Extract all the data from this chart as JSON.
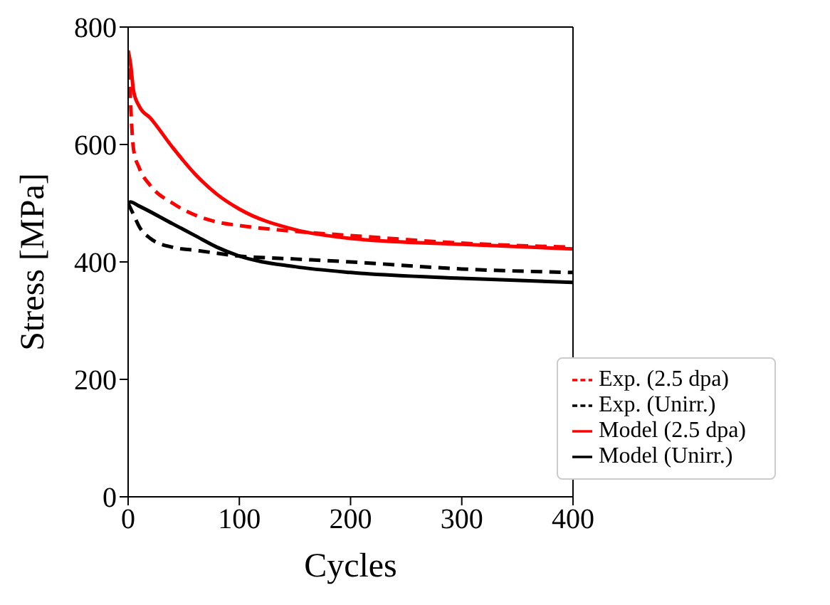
{
  "chart_data": {
    "type": "line",
    "xlabel": "Cycles",
    "ylabel": "Stress [MPa]",
    "xlim": [
      0,
      400
    ],
    "ylim": [
      0,
      800
    ],
    "xticks": [
      0,
      100,
      200,
      300,
      400
    ],
    "yticks": [
      0,
      200,
      400,
      600,
      800
    ],
    "grid": false,
    "legend": "bottom right",
    "marker": "none",
    "series": [
      {
        "name": "Exp. (Unirr.)",
        "color": "#000000",
        "line_style": "dashed",
        "x": [
          0,
          5,
          10,
          20,
          40,
          60,
          100,
          150,
          200,
          300,
          400
        ],
        "values": [
          500,
          480,
          460,
          440,
          425,
          420,
          410,
          405,
          400,
          388,
          382
        ]
      },
      {
        "name": "Exp. (2.5 dpa)",
        "color": "#ff0000",
        "line_style": "dashed",
        "x": [
          1,
          2,
          5,
          10,
          20,
          40,
          60,
          80,
          100,
          150,
          200,
          300,
          400
        ],
        "values": [
          730,
          680,
          590,
          560,
          530,
          500,
          480,
          468,
          462,
          452,
          445,
          432,
          425
        ]
      },
      {
        "name": "Model (Unirr.)",
        "color": "#000000",
        "line_style": "solid",
        "x": [
          0,
          2,
          10,
          40,
          60,
          80,
          100,
          150,
          200,
          300,
          400
        ],
        "values": [
          500,
          502,
          495,
          465,
          445,
          425,
          410,
          392,
          382,
          372,
          365
        ]
      },
      {
        "name": "Model (2.5 dpa)",
        "color": "#ff0000",
        "line_style": "solid",
        "x": [
          0,
          2,
          5,
          10,
          20,
          40,
          60,
          80,
          100,
          150,
          200,
          300,
          400
        ],
        "values": [
          760,
          740,
          690,
          665,
          645,
          595,
          550,
          515,
          490,
          455,
          440,
          430,
          422
        ]
      }
    ]
  }
}
